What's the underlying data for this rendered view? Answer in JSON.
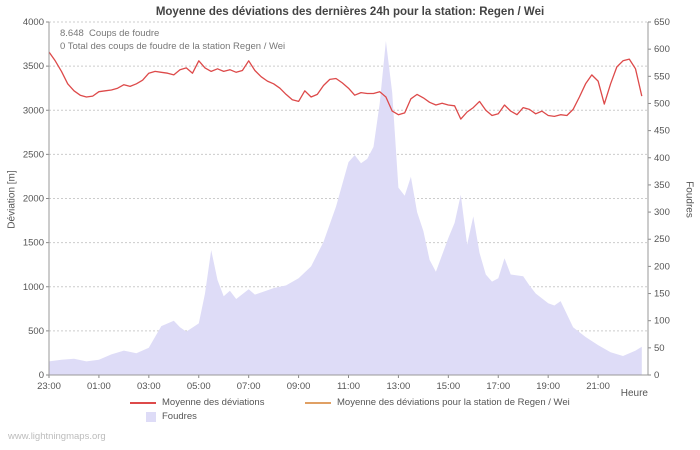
{
  "watermark": "www.lightningmaps.org",
  "chart_data": {
    "type": "line+area",
    "title": "Moyenne des déviations des dernières 24h pour la station: Regen / Wei",
    "xlabel": "Heure",
    "ylabel_left": "Déviation [m]",
    "ylabel_right": "Foudres",
    "annotations": {
      "total_strikes": "8.648  Coups de foudre",
      "station_total": "0 Total des coups de foudre de la station Regen / Wei"
    },
    "y_left": {
      "min": 0,
      "max": 4000,
      "step": 500
    },
    "y_right": {
      "min": 0,
      "max": 650,
      "step": 50
    },
    "x_axis": {
      "unit": "hours since 23:00",
      "range": [
        0,
        23.75
      ],
      "ticks": [
        {
          "x": 0,
          "label": "23:00"
        },
        {
          "x": 2,
          "label": "01:00"
        },
        {
          "x": 4,
          "label": "03:00"
        },
        {
          "x": 6,
          "label": "05:00"
        },
        {
          "x": 8,
          "label": "07:00"
        },
        {
          "x": 10,
          "label": "09:00"
        },
        {
          "x": 12,
          "label": "11:00"
        },
        {
          "x": 14,
          "label": "13:00"
        },
        {
          "x": 16,
          "label": "15:00"
        },
        {
          "x": 18,
          "label": "17:00"
        },
        {
          "x": 20,
          "label": "19:00"
        },
        {
          "x": 22,
          "label": "21:00"
        }
      ]
    },
    "grid": {
      "horizontal": true,
      "dashed": true,
      "color": "#cccccc"
    },
    "legend": [
      {
        "label": "Moyenne des déviations",
        "color": "#dd4a4a",
        "swatch": "line"
      },
      {
        "label": "Moyenne des déviations pour la station de Regen / Wei",
        "color": "#e0a064",
        "swatch": "line"
      },
      {
        "label": "Foudres",
        "color": "#dedcf7",
        "swatch": "area"
      }
    ],
    "series": [
      {
        "name": "Foudres",
        "axis": "right",
        "style": "area",
        "color": "#dedcf7",
        "points": [
          [
            0,
            25
          ],
          [
            0.5,
            28
          ],
          [
            1,
            30
          ],
          [
            1.5,
            25
          ],
          [
            2,
            28
          ],
          [
            2.5,
            38
          ],
          [
            3,
            45
          ],
          [
            3.5,
            40
          ],
          [
            4,
            50
          ],
          [
            4.5,
            90
          ],
          [
            5,
            100
          ],
          [
            5.25,
            88
          ],
          [
            5.5,
            80
          ],
          [
            6,
            95
          ],
          [
            6.25,
            150
          ],
          [
            6.5,
            230
          ],
          [
            6.75,
            175
          ],
          [
            7,
            145
          ],
          [
            7.25,
            155
          ],
          [
            7.5,
            140
          ],
          [
            8,
            158
          ],
          [
            8.25,
            148
          ],
          [
            8.5,
            152
          ],
          [
            9,
            160
          ],
          [
            9.5,
            165
          ],
          [
            10,
            178
          ],
          [
            10.5,
            200
          ],
          [
            11,
            245
          ],
          [
            11.5,
            310
          ],
          [
            12,
            392
          ],
          [
            12.25,
            405
          ],
          [
            12.5,
            390
          ],
          [
            12.75,
            398
          ],
          [
            13,
            420
          ],
          [
            13.25,
            500
          ],
          [
            13.5,
            615
          ],
          [
            13.75,
            520
          ],
          [
            14,
            345
          ],
          [
            14.25,
            330
          ],
          [
            14.5,
            365
          ],
          [
            14.75,
            300
          ],
          [
            15,
            265
          ],
          [
            15.25,
            212
          ],
          [
            15.5,
            190
          ],
          [
            16,
            252
          ],
          [
            16.25,
            280
          ],
          [
            16.5,
            332
          ],
          [
            16.75,
            240
          ],
          [
            17,
            292
          ],
          [
            17.25,
            225
          ],
          [
            17.5,
            185
          ],
          [
            17.75,
            172
          ],
          [
            18,
            178
          ],
          [
            18.25,
            215
          ],
          [
            18.5,
            185
          ],
          [
            19,
            182
          ],
          [
            19.25,
            165
          ],
          [
            19.5,
            150
          ],
          [
            20,
            132
          ],
          [
            20.25,
            128
          ],
          [
            20.5,
            136
          ],
          [
            21,
            88
          ],
          [
            21.5,
            70
          ],
          [
            22,
            55
          ],
          [
            22.5,
            42
          ],
          [
            23,
            35
          ],
          [
            23.5,
            45
          ],
          [
            23.75,
            52
          ]
        ]
      },
      {
        "name": "Moyenne des déviations pour la station de Regen / Wei",
        "axis": "left",
        "style": "line",
        "color": "#e0a064",
        "points": []
      },
      {
        "name": "Moyenne des déviations",
        "axis": "left",
        "style": "line",
        "color": "#dd4a4a",
        "points": [
          [
            0,
            3660
          ],
          [
            0.25,
            3560
          ],
          [
            0.5,
            3440
          ],
          [
            0.75,
            3300
          ],
          [
            1,
            3220
          ],
          [
            1.25,
            3170
          ],
          [
            1.5,
            3150
          ],
          [
            1.75,
            3160
          ],
          [
            2,
            3210
          ],
          [
            2.25,
            3220
          ],
          [
            2.5,
            3230
          ],
          [
            2.75,
            3250
          ],
          [
            3,
            3290
          ],
          [
            3.25,
            3270
          ],
          [
            3.5,
            3300
          ],
          [
            3.75,
            3340
          ],
          [
            4,
            3420
          ],
          [
            4.25,
            3440
          ],
          [
            4.5,
            3430
          ],
          [
            4.75,
            3420
          ],
          [
            5,
            3400
          ],
          [
            5.25,
            3460
          ],
          [
            5.5,
            3480
          ],
          [
            5.75,
            3420
          ],
          [
            6,
            3560
          ],
          [
            6.25,
            3480
          ],
          [
            6.5,
            3440
          ],
          [
            6.75,
            3470
          ],
          [
            7,
            3440
          ],
          [
            7.25,
            3460
          ],
          [
            7.5,
            3430
          ],
          [
            7.75,
            3450
          ],
          [
            8,
            3560
          ],
          [
            8.25,
            3450
          ],
          [
            8.5,
            3380
          ],
          [
            8.75,
            3330
          ],
          [
            9,
            3300
          ],
          [
            9.25,
            3250
          ],
          [
            9.5,
            3180
          ],
          [
            9.75,
            3120
          ],
          [
            10,
            3100
          ],
          [
            10.25,
            3220
          ],
          [
            10.5,
            3150
          ],
          [
            10.75,
            3180
          ],
          [
            11,
            3280
          ],
          [
            11.25,
            3350
          ],
          [
            11.5,
            3360
          ],
          [
            11.75,
            3310
          ],
          [
            12,
            3250
          ],
          [
            12.25,
            3170
          ],
          [
            12.5,
            3200
          ],
          [
            12.75,
            3190
          ],
          [
            13,
            3190
          ],
          [
            13.25,
            3210
          ],
          [
            13.5,
            3150
          ],
          [
            13.75,
            2990
          ],
          [
            14,
            2950
          ],
          [
            14.25,
            2970
          ],
          [
            14.5,
            3130
          ],
          [
            14.75,
            3180
          ],
          [
            15,
            3140
          ],
          [
            15.25,
            3090
          ],
          [
            15.5,
            3060
          ],
          [
            15.75,
            3080
          ],
          [
            16,
            3060
          ],
          [
            16.25,
            3050
          ],
          [
            16.5,
            2900
          ],
          [
            16.75,
            2980
          ],
          [
            17,
            3030
          ],
          [
            17.25,
            3100
          ],
          [
            17.5,
            3000
          ],
          [
            17.75,
            2940
          ],
          [
            18,
            2960
          ],
          [
            18.25,
            3060
          ],
          [
            18.5,
            2990
          ],
          [
            18.75,
            2950
          ],
          [
            19,
            3030
          ],
          [
            19.25,
            3010
          ],
          [
            19.5,
            2960
          ],
          [
            19.75,
            2990
          ],
          [
            20,
            2940
          ],
          [
            20.25,
            2930
          ],
          [
            20.5,
            2950
          ],
          [
            20.75,
            2940
          ],
          [
            21,
            3010
          ],
          [
            21.25,
            3150
          ],
          [
            21.5,
            3300
          ],
          [
            21.75,
            3400
          ],
          [
            22,
            3330
          ],
          [
            22.25,
            3070
          ],
          [
            22.5,
            3300
          ],
          [
            22.75,
            3490
          ],
          [
            23,
            3560
          ],
          [
            23.25,
            3580
          ],
          [
            23.5,
            3470
          ],
          [
            23.75,
            3160
          ]
        ]
      }
    ]
  }
}
